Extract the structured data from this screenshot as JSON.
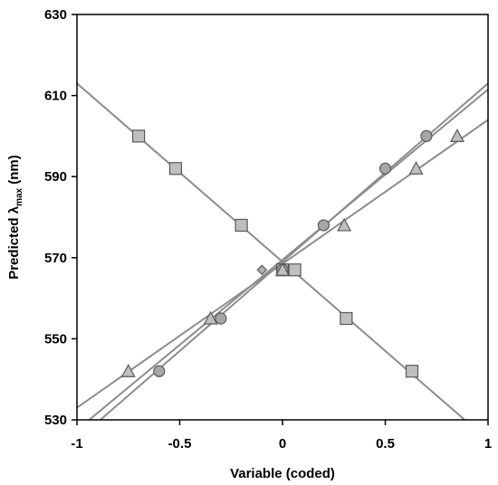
{
  "chart_data": {
    "type": "scatter",
    "title": "",
    "xlabel": "Variable (coded)",
    "ylabel": {
      "main": "Predicted λ",
      "sub": "max",
      "unit": " (nm)"
    },
    "xlim": [
      -1,
      1
    ],
    "ylim": [
      530,
      630
    ],
    "x_ticks": [
      -1,
      -0.5,
      0,
      0.5,
      1
    ],
    "x_tick_labels": [
      "-1",
      "-0.5",
      "0",
      "0.5",
      "1"
    ],
    "y_ticks": [
      530,
      550,
      570,
      590,
      610,
      630
    ],
    "y_tick_labels": [
      "530",
      "550",
      "570",
      "590",
      "610",
      "630"
    ],
    "grid": false,
    "legend": "none",
    "series": [
      {
        "marker": "square",
        "color": "#bfbfbf",
        "x": [
          -0.7,
          -0.52,
          -0.2,
          0.0,
          0.06,
          0.31,
          0.63
        ],
        "y": [
          600,
          592,
          578,
          567,
          567,
          555,
          542
        ]
      },
      {
        "marker": "circle",
        "color": "#a6a6a6",
        "x": [
          -0.6,
          -0.3,
          0.0,
          0.2,
          0.5,
          0.7
        ],
        "y": [
          542,
          555,
          567,
          578,
          592,
          600
        ]
      },
      {
        "marker": "triangle",
        "color": "#c0c0c0",
        "x": [
          -0.75,
          -0.35,
          0.0,
          0.3,
          0.65,
          0.85
        ],
        "y": [
          542,
          555,
          567,
          578,
          592,
          600
        ]
      },
      {
        "marker": "diamond",
        "color": "#b0b0b0",
        "x": [
          -0.1
        ],
        "y": [
          567
        ]
      }
    ],
    "fit_lines": [
      {
        "slope": -44,
        "intercept": 569,
        "color": "#8c8c8c"
      },
      {
        "slope": 44,
        "intercept": 569,
        "color": "#8c8c8c"
      },
      {
        "slope": 42,
        "intercept": 569.5,
        "color": "#8c8c8c"
      },
      {
        "slope": 35.5,
        "intercept": 568.5,
        "color": "#8c8c8c"
      }
    ]
  }
}
